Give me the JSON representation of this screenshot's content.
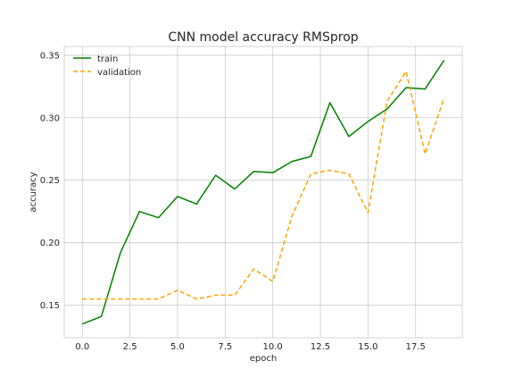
{
  "chart_data": {
    "type": "line",
    "title": "CNN model accuracy RMSprop",
    "xlabel": "epoch",
    "ylabel": "accuracy",
    "xlim": [
      -0.95,
      19.95
    ],
    "ylim": [
      0.124,
      0.357
    ],
    "xticks": [
      0.0,
      2.5,
      5.0,
      7.5,
      10.0,
      12.5,
      15.0,
      17.5
    ],
    "xtick_labels": [
      "0.0",
      "2.5",
      "5.0",
      "7.5",
      "10.0",
      "12.5",
      "15.0",
      "17.5"
    ],
    "yticks": [
      0.15,
      0.2,
      0.25,
      0.3,
      0.35
    ],
    "ytick_labels": [
      "0.15",
      "0.20",
      "0.25",
      "0.30",
      "0.35"
    ],
    "grid": true,
    "legend_position": "top-left",
    "x": [
      0,
      1,
      2,
      3,
      4,
      5,
      6,
      7,
      8,
      9,
      10,
      11,
      12,
      13,
      14,
      15,
      16,
      17,
      18,
      19
    ],
    "series": [
      {
        "name": "train",
        "color": "#008000",
        "style": "solid",
        "values": [
          0.135,
          0.141,
          0.192,
          0.225,
          0.22,
          0.237,
          0.231,
          0.254,
          0.243,
          0.257,
          0.256,
          0.265,
          0.269,
          0.312,
          0.285,
          0.297,
          0.307,
          0.324,
          0.323,
          0.346
        ]
      },
      {
        "name": "validation",
        "color": "#ffa500",
        "style": "dashed",
        "values": [
          0.155,
          0.155,
          0.155,
          0.155,
          0.155,
          0.162,
          0.155,
          0.158,
          0.158,
          0.179,
          0.169,
          0.221,
          0.255,
          0.258,
          0.255,
          0.224,
          0.313,
          0.337,
          0.271,
          0.316
        ]
      }
    ]
  }
}
